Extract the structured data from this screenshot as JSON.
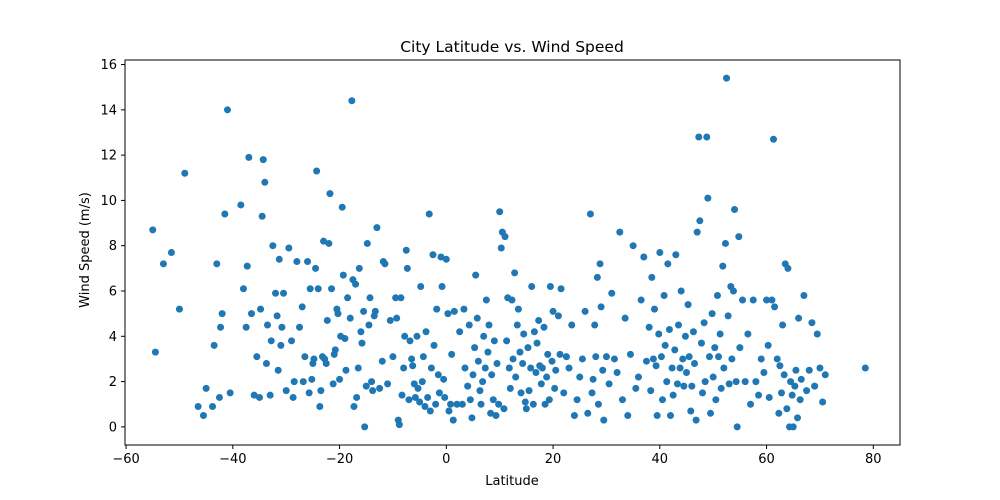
{
  "chart_data": {
    "type": "scatter",
    "title": "City Latitude vs. Wind Speed",
    "xlabel": "Latitude",
    "ylabel": "Wind Speed (m/s)",
    "xlim": [
      -60.2,
      85
    ],
    "ylim": [
      -0.8,
      16.2
    ],
    "xticks": [
      -60,
      -40,
      -20,
      0,
      20,
      40,
      60,
      80
    ],
    "yticks": [
      0,
      2,
      4,
      6,
      8,
      10,
      12,
      14,
      16
    ],
    "grid": false,
    "marker_color": "#1f77b4",
    "points": [
      [
        -55,
        8.7
      ],
      [
        -54.5,
        3.3
      ],
      [
        -53,
        7.2
      ],
      [
        -51.5,
        7.7
      ],
      [
        -50,
        5.2
      ],
      [
        -49,
        11.2
      ],
      [
        -46.5,
        0.9
      ],
      [
        -45.5,
        0.5
      ],
      [
        -45,
        1.7
      ],
      [
        -43.8,
        0.9
      ],
      [
        -43.5,
        3.6
      ],
      [
        -43,
        7.2
      ],
      [
        -42.5,
        1.3
      ],
      [
        -42.3,
        4.4
      ],
      [
        -42,
        5.0
      ],
      [
        -41.5,
        9.4
      ],
      [
        -41,
        14.0
      ],
      [
        -40.5,
        1.5
      ],
      [
        -38.5,
        9.8
      ],
      [
        -38,
        6.1
      ],
      [
        -37.5,
        4.4
      ],
      [
        -37.3,
        7.1
      ],
      [
        -37,
        11.9
      ],
      [
        -36.5,
        5.0
      ],
      [
        -36,
        1.4
      ],
      [
        -35.5,
        3.1
      ],
      [
        -35,
        1.3
      ],
      [
        -34.8,
        5.2
      ],
      [
        -34.5,
        9.3
      ],
      [
        -34.3,
        11.8
      ],
      [
        -34,
        10.8
      ],
      [
        -33.7,
        2.8
      ],
      [
        -33.5,
        4.5
      ],
      [
        -33,
        1.4
      ],
      [
        -32.8,
        3.8
      ],
      [
        -32.5,
        8.0
      ],
      [
        -32,
        5.9
      ],
      [
        -31.7,
        4.9
      ],
      [
        -31.5,
        2.5
      ],
      [
        -31.3,
        7.4
      ],
      [
        -31,
        3.6
      ],
      [
        -30.8,
        4.4
      ],
      [
        -30.5,
        5.9
      ],
      [
        -30,
        1.6
      ],
      [
        -29.5,
        7.9
      ],
      [
        -29,
        3.8
      ],
      [
        -28.7,
        1.3
      ],
      [
        -28.5,
        2.0
      ],
      [
        -28,
        7.3
      ],
      [
        -27.5,
        4.4
      ],
      [
        -27,
        5.3
      ],
      [
        -26.8,
        2.0
      ],
      [
        -26.5,
        3.1
      ],
      [
        -26,
        7.3
      ],
      [
        -25.7,
        1.5
      ],
      [
        -25.5,
        6.1
      ],
      [
        -25.2,
        2.1
      ],
      [
        -25,
        2.8
      ],
      [
        -24.8,
        3.0
      ],
      [
        -24.5,
        7.0
      ],
      [
        -24.3,
        11.3
      ],
      [
        -24,
        6.1
      ],
      [
        -23.7,
        0.9
      ],
      [
        -23.5,
        1.6
      ],
      [
        -23.2,
        3.1
      ],
      [
        -23,
        8.2
      ],
      [
        -22.8,
        3.0
      ],
      [
        -22.5,
        2.8
      ],
      [
        -22.3,
        4.7
      ],
      [
        -22,
        8.1
      ],
      [
        -21.8,
        10.3
      ],
      [
        -21.5,
        6.1
      ],
      [
        -21.2,
        1.9
      ],
      [
        -21,
        3.2
      ],
      [
        -20.8,
        3.4
      ],
      [
        -20.5,
        5.2
      ],
      [
        -20.3,
        5.0
      ],
      [
        -20,
        2.1
      ],
      [
        -19.8,
        4.0
      ],
      [
        -19.5,
        9.7
      ],
      [
        -19.3,
        6.7
      ],
      [
        -19,
        3.9
      ],
      [
        -18.8,
        2.5
      ],
      [
        -18.5,
        5.7
      ],
      [
        -18,
        4.8
      ],
      [
        -17.7,
        14.4
      ],
      [
        -17.5,
        6.5
      ],
      [
        -17.3,
        0.9
      ],
      [
        -17,
        6.3
      ],
      [
        -16.8,
        1.3
      ],
      [
        -16.5,
        2.6
      ],
      [
        -16.3,
        7.0
      ],
      [
        -16,
        4.2
      ],
      [
        -15.8,
        3.7
      ],
      [
        -15.5,
        5.1
      ],
      [
        -15.3,
        0.0
      ],
      [
        -15,
        1.8
      ],
      [
        -14.8,
        8.1
      ],
      [
        -14.5,
        4.5
      ],
      [
        -14.3,
        5.7
      ],
      [
        -14,
        2.0
      ],
      [
        -13.8,
        1.6
      ],
      [
        -13.5,
        4.9
      ],
      [
        -13.3,
        5.1
      ],
      [
        -13,
        8.8
      ],
      [
        -12.5,
        1.7
      ],
      [
        -12,
        2.9
      ],
      [
        -11.8,
        7.3
      ],
      [
        -11.5,
        7.2
      ],
      [
        -11,
        1.9
      ],
      [
        -10.5,
        4.7
      ],
      [
        -10,
        3.1
      ],
      [
        -9.5,
        5.7
      ],
      [
        -9.3,
        4.8
      ],
      [
        -9,
        0.3
      ],
      [
        -8.8,
        0.1
      ],
      [
        -8.5,
        5.7
      ],
      [
        -8.3,
        1.4
      ],
      [
        -8,
        2.6
      ],
      [
        -7.8,
        4.0
      ],
      [
        -7.5,
        7.8
      ],
      [
        -7.3,
        7.0
      ],
      [
        -7,
        1.2
      ],
      [
        -6.8,
        3.8
      ],
      [
        -6.5,
        3.0
      ],
      [
        -6.3,
        2.7
      ],
      [
        -6,
        1.9
      ],
      [
        -5.8,
        1.3
      ],
      [
        -5.5,
        4.0
      ],
      [
        -5.3,
        1.7
      ],
      [
        -5,
        1.1
      ],
      [
        -4.8,
        6.2
      ],
      [
        -4.5,
        2.0
      ],
      [
        -4.3,
        3.1
      ],
      [
        -4,
        0.9
      ],
      [
        -3.8,
        4.2
      ],
      [
        -3.5,
        1.3
      ],
      [
        -3.2,
        9.4
      ],
      [
        -3,
        0.7
      ],
      [
        -2.8,
        2.6
      ],
      [
        -2.5,
        7.6
      ],
      [
        -2.3,
        3.6
      ],
      [
        -2,
        1.0
      ],
      [
        -1.8,
        5.2
      ],
      [
        -1.5,
        2.3
      ],
      [
        -1.3,
        1.5
      ],
      [
        -1,
        7.5
      ],
      [
        -0.8,
        6.2
      ],
      [
        -0.5,
        2.1
      ],
      [
        -0.3,
        1.3
      ],
      [
        0,
        7.4
      ],
      [
        0.3,
        5.0
      ],
      [
        0.5,
        0.7
      ],
      [
        0.8,
        1.0
      ],
      [
        1,
        3.2
      ],
      [
        1.3,
        0.3
      ],
      [
        1.5,
        5.1
      ],
      [
        2,
        1.0
      ],
      [
        2.5,
        4.2
      ],
      [
        3,
        1.0
      ],
      [
        3.3,
        5.2
      ],
      [
        3.5,
        2.6
      ],
      [
        4,
        1.8
      ],
      [
        4.3,
        4.5
      ],
      [
        4.5,
        1.2
      ],
      [
        4.8,
        0.4
      ],
      [
        5,
        2.3
      ],
      [
        5.3,
        3.5
      ],
      [
        5.5,
        6.7
      ],
      [
        5.8,
        4.8
      ],
      [
        6,
        2.9
      ],
      [
        6.3,
        1.6
      ],
      [
        6.5,
        1.0
      ],
      [
        6.8,
        2.0
      ],
      [
        7,
        4.0
      ],
      [
        7.3,
        2.6
      ],
      [
        7.5,
        5.6
      ],
      [
        7.8,
        3.3
      ],
      [
        8,
        4.5
      ],
      [
        8.3,
        0.6
      ],
      [
        8.5,
        2.3
      ],
      [
        8.8,
        1.2
      ],
      [
        9,
        3.8
      ],
      [
        9.3,
        0.5
      ],
      [
        9.5,
        2.8
      ],
      [
        9.8,
        1.0
      ],
      [
        10,
        9.5
      ],
      [
        10.3,
        7.9
      ],
      [
        10.5,
        8.6
      ],
      [
        10.8,
        0.8
      ],
      [
        11,
        8.4
      ],
      [
        11.3,
        3.8
      ],
      [
        11.5,
        5.7
      ],
      [
        11.8,
        2.6
      ],
      [
        12,
        1.7
      ],
      [
        12.3,
        5.6
      ],
      [
        12.5,
        3.0
      ],
      [
        12.8,
        6.8
      ],
      [
        13,
        2.2
      ],
      [
        13.3,
        4.5
      ],
      [
        13.5,
        5.2
      ],
      [
        13.8,
        3.3
      ],
      [
        14,
        1.5
      ],
      [
        14.3,
        2.8
      ],
      [
        14.5,
        4.1
      ],
      [
        14.8,
        1.1
      ],
      [
        15,
        0.8
      ],
      [
        15.3,
        3.5
      ],
      [
        15.5,
        1.6
      ],
      [
        15.8,
        2.6
      ],
      [
        16,
        6.2
      ],
      [
        16.3,
        1.0
      ],
      [
        16.5,
        4.2
      ],
      [
        16.8,
        2.4
      ],
      [
        17,
        3.7
      ],
      [
        17.3,
        4.7
      ],
      [
        17.5,
        2.7
      ],
      [
        17.8,
        1.9
      ],
      [
        18,
        2.6
      ],
      [
        18.3,
        4.4
      ],
      [
        18.5,
        1.0
      ],
      [
        18.8,
        2.2
      ],
      [
        19,
        3.2
      ],
      [
        19.3,
        1.2
      ],
      [
        19.5,
        6.2
      ],
      [
        19.8,
        2.9
      ],
      [
        20,
        5.1
      ],
      [
        20.3,
        1.7
      ],
      [
        20.5,
        2.5
      ],
      [
        21,
        4.9
      ],
      [
        21.3,
        3.2
      ],
      [
        21.5,
        6.1
      ],
      [
        22,
        1.5
      ],
      [
        22.5,
        3.1
      ],
      [
        23,
        2.6
      ],
      [
        23.5,
        4.5
      ],
      [
        24,
        0.5
      ],
      [
        24.5,
        1.2
      ],
      [
        25,
        2.2
      ],
      [
        25.5,
        3.0
      ],
      [
        26,
        5.1
      ],
      [
        26.5,
        0.6
      ],
      [
        27,
        9.4
      ],
      [
        27.3,
        1.5
      ],
      [
        27.5,
        2.1
      ],
      [
        27.8,
        4.5
      ],
      [
        28,
        3.1
      ],
      [
        28.3,
        6.6
      ],
      [
        28.5,
        1.0
      ],
      [
        28.8,
        7.2
      ],
      [
        29,
        5.3
      ],
      [
        29.3,
        2.5
      ],
      [
        29.5,
        0.3
      ],
      [
        30,
        3.1
      ],
      [
        30.5,
        1.9
      ],
      [
        31,
        5.9
      ],
      [
        31.5,
        3.0
      ],
      [
        32,
        2.4
      ],
      [
        32.5,
        8.6
      ],
      [
        33,
        1.2
      ],
      [
        33.5,
        4.8
      ],
      [
        34,
        0.5
      ],
      [
        34.5,
        3.2
      ],
      [
        35,
        8.0
      ],
      [
        35.5,
        1.7
      ],
      [
        36,
        2.2
      ],
      [
        36.5,
        5.6
      ],
      [
        37,
        7.5
      ],
      [
        37.5,
        2.9
      ],
      [
        38,
        4.4
      ],
      [
        38.3,
        1.6
      ],
      [
        38.5,
        6.6
      ],
      [
        38.8,
        3.0
      ],
      [
        39,
        5.2
      ],
      [
        39.3,
        2.7
      ],
      [
        39.5,
        0.5
      ],
      [
        39.8,
        4.1
      ],
      [
        40,
        7.7
      ],
      [
        40.3,
        3.1
      ],
      [
        40.5,
        1.2
      ],
      [
        40.8,
        5.8
      ],
      [
        41,
        3.6
      ],
      [
        41.3,
        2.0
      ],
      [
        41.5,
        7.2
      ],
      [
        41.8,
        4.3
      ],
      [
        42,
        0.5
      ],
      [
        42.3,
        2.6
      ],
      [
        42.5,
        1.4
      ],
      [
        42.8,
        3.4
      ],
      [
        43,
        7.6
      ],
      [
        43.3,
        1.9
      ],
      [
        43.5,
        4.5
      ],
      [
        43.8,
        2.6
      ],
      [
        44,
        6.0
      ],
      [
        44.3,
        3.0
      ],
      [
        44.5,
        1.8
      ],
      [
        44.8,
        4.0
      ],
      [
        45,
        2.4
      ],
      [
        45.3,
        5.4
      ],
      [
        45.5,
        3.1
      ],
      [
        45.8,
        0.7
      ],
      [
        46,
        1.8
      ],
      [
        46.3,
        4.2
      ],
      [
        46.5,
        2.8
      ],
      [
        46.8,
        0.3
      ],
      [
        47,
        8.6
      ],
      [
        47.3,
        12.8
      ],
      [
        47.5,
        9.1
      ],
      [
        47.8,
        3.7
      ],
      [
        48,
        1.5
      ],
      [
        48.3,
        4.6
      ],
      [
        48.5,
        2.0
      ],
      [
        48.8,
        12.8
      ],
      [
        49,
        10.1
      ],
      [
        49.3,
        3.1
      ],
      [
        49.5,
        0.6
      ],
      [
        49.8,
        5.0
      ],
      [
        50,
        2.2
      ],
      [
        50.3,
        3.5
      ],
      [
        50.5,
        1.2
      ],
      [
        50.8,
        5.8
      ],
      [
        51,
        3.1
      ],
      [
        51.3,
        4.1
      ],
      [
        51.5,
        1.7
      ],
      [
        51.8,
        7.1
      ],
      [
        52,
        2.6
      ],
      [
        52.3,
        8.1
      ],
      [
        52.5,
        15.4
      ],
      [
        52.8,
        4.9
      ],
      [
        53,
        1.9
      ],
      [
        53.3,
        6.2
      ],
      [
        53.5,
        3.0
      ],
      [
        53.8,
        6.0
      ],
      [
        54,
        9.6
      ],
      [
        54.3,
        2.0
      ],
      [
        54.5,
        0.0
      ],
      [
        54.8,
        8.4
      ],
      [
        55,
        3.5
      ],
      [
        55.5,
        5.6
      ],
      [
        56,
        2.0
      ],
      [
        56.5,
        4.1
      ],
      [
        57,
        1.0
      ],
      [
        57.5,
        5.6
      ],
      [
        58,
        2.0
      ],
      [
        58.5,
        1.4
      ],
      [
        59,
        3.0
      ],
      [
        59.5,
        2.4
      ],
      [
        60,
        5.6
      ],
      [
        60.3,
        3.6
      ],
      [
        60.5,
        1.3
      ],
      [
        61,
        5.6
      ],
      [
        61.3,
        12.7
      ],
      [
        61.5,
        5.3
      ],
      [
        62,
        3.0
      ],
      [
        62.3,
        0.6
      ],
      [
        62.5,
        2.7
      ],
      [
        62.8,
        1.5
      ],
      [
        63,
        4.5
      ],
      [
        63.3,
        2.3
      ],
      [
        63.5,
        7.2
      ],
      [
        63.8,
        0.8
      ],
      [
        64,
        7.0
      ],
      [
        64.3,
        0.0
      ],
      [
        64.5,
        2.0
      ],
      [
        64.8,
        1.4
      ],
      [
        65,
        0.0
      ],
      [
        65.3,
        1.8
      ],
      [
        65.5,
        2.5
      ],
      [
        65.8,
        0.4
      ],
      [
        66,
        4.8
      ],
      [
        66.3,
        1.2
      ],
      [
        66.5,
        2.1
      ],
      [
        67,
        5.8
      ],
      [
        67.5,
        1.6
      ],
      [
        68,
        2.5
      ],
      [
        68.5,
        4.6
      ],
      [
        69,
        1.8
      ],
      [
        69.5,
        4.1
      ],
      [
        70,
        2.6
      ],
      [
        70.5,
        1.1
      ],
      [
        71,
        2.3
      ],
      [
        78.5,
        2.6
      ]
    ]
  }
}
